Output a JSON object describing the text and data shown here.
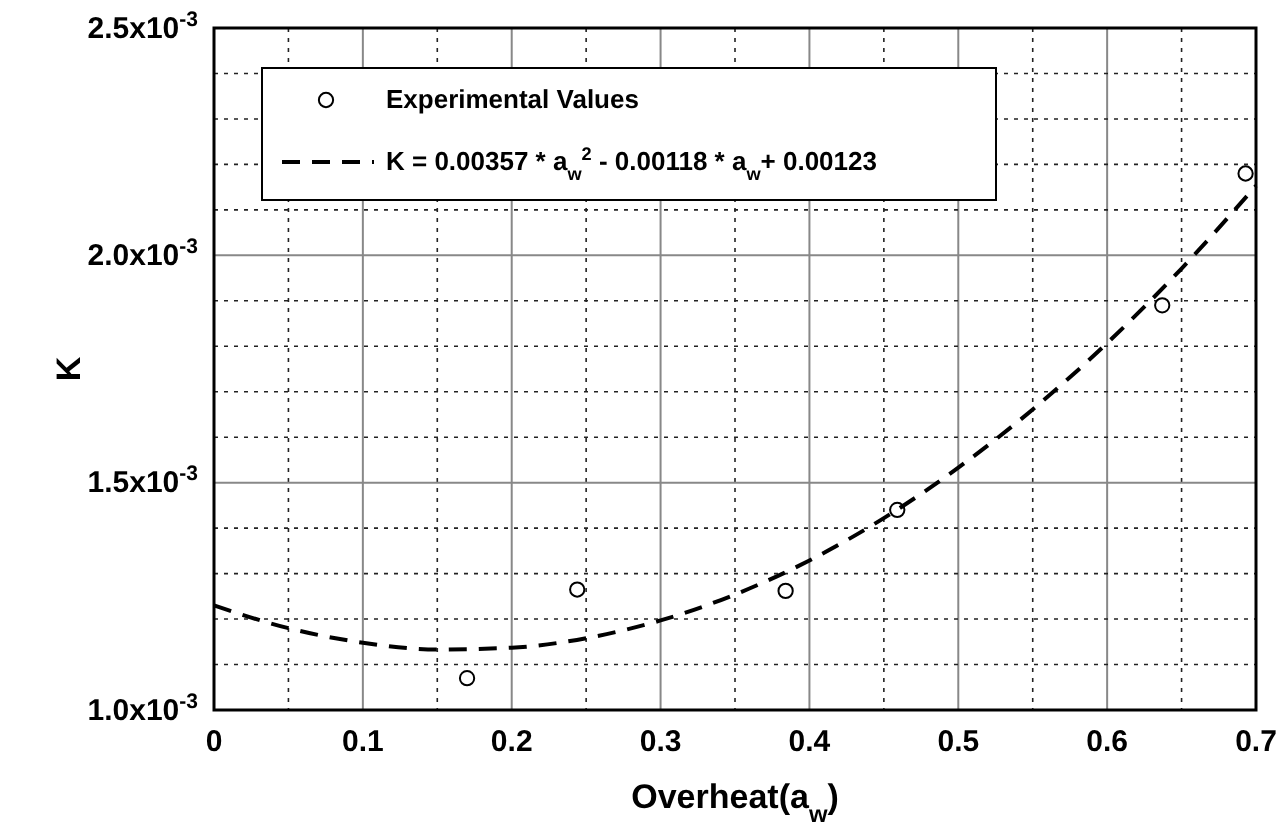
{
  "chart_data": {
    "type": "scatter",
    "xlabel": "Overheat(a$_{w}$)",
    "ylabel": "K",
    "xlim": [
      0,
      0.7
    ],
    "ylim": [
      0.001,
      0.0025
    ],
    "xticks": [
      0,
      {
        "value": 0.05,
        "label": null
      },
      0.1,
      {
        "value": 0.15,
        "label": null
      },
      0.2,
      {
        "value": 0.25,
        "label": null
      },
      0.3,
      {
        "value": 0.35,
        "label": null
      },
      0.4,
      {
        "value": 0.45,
        "label": null
      },
      0.5,
      {
        "value": 0.55,
        "label": null
      },
      0.6,
      {
        "value": 0.65,
        "label": null
      },
      0.7
    ],
    "yticks": [
      {
        "value": 0.001,
        "label": "1.0x10$^{-3}$"
      },
      {
        "value": 0.0011,
        "label": null
      },
      {
        "value": 0.0012,
        "label": null
      },
      {
        "value": 0.0013,
        "label": null
      },
      {
        "value": 0.0014,
        "label": null
      },
      {
        "value": 0.0015,
        "label": "1.5x10$^{-3}$"
      },
      {
        "value": 0.0016,
        "label": null
      },
      {
        "value": 0.0017,
        "label": null
      },
      {
        "value": 0.0018,
        "label": null
      },
      {
        "value": 0.0019,
        "label": null
      },
      {
        "value": 0.002,
        "label": "2.0x10$^{-3}$"
      },
      {
        "value": 0.0021,
        "label": null
      },
      {
        "value": 0.0022,
        "label": null
      },
      {
        "value": 0.0023,
        "label": null
      },
      {
        "value": 0.0024,
        "label": null
      },
      {
        "value": 0.0025,
        "label": "2.5x10$^{-3}$"
      }
    ],
    "grid": true,
    "legend": "top left",
    "series": [
      {
        "name": "Experimental Values",
        "marker": "circle",
        "color": "#000000",
        "x": [
          0.17,
          0.244,
          0.384,
          0.459,
          0.637,
          0.693
        ],
        "values": [
          0.00107,
          0.001265,
          0.001262,
          0.00144,
          0.00189,
          0.00218
        ]
      },
      {
        "name": "K = 0.00357 * a$_{w}$$^{2}$ - 0.00118 * a$_{w}$+ 0.00123",
        "type": "line",
        "line_style": "dashed",
        "color": "#000000",
        "x": [
          0,
          0.05,
          0.1,
          0.15,
          0.2,
          0.25,
          0.3,
          0.35,
          0.4,
          0.45,
          0.5,
          0.55,
          0.6,
          0.65,
          0.7
        ],
        "values": [
          0.00123,
          0.00118,
          0.001148,
          0.001133,
          0.001137,
          0.001158,
          0.001197,
          0.001254,
          0.001329,
          0.001422,
          0.001533,
          0.001661,
          0.001807,
          0.001971,
          0.002153
        ]
      }
    ]
  }
}
